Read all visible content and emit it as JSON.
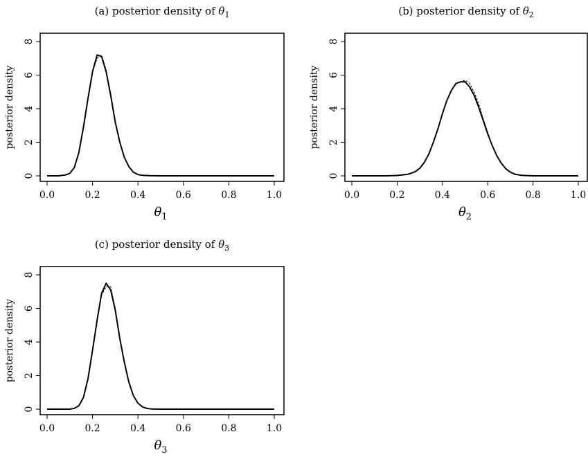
{
  "chart_data": [
    {
      "type": "line",
      "title_prefix": "(a) posterior density of ",
      "title_symbol": "θ",
      "title_subscript": "1",
      "xlabel_symbol": "θ",
      "xlabel_subscript": "1",
      "ylabel": "posterior density",
      "xlim": [
        0.0,
        1.0
      ],
      "ylim": [
        0,
        8
      ],
      "xticks": [
        "0.0",
        "0.2",
        "0.4",
        "0.6",
        "0.8",
        "1.0"
      ],
      "yticks": [
        "0",
        "2",
        "4",
        "6",
        "8"
      ],
      "series": [
        {
          "style": "solid",
          "x": [
            0.0,
            0.05,
            0.08,
            0.1,
            0.12,
            0.14,
            0.16,
            0.18,
            0.2,
            0.22,
            0.24,
            0.26,
            0.28,
            0.3,
            0.32,
            0.34,
            0.36,
            0.38,
            0.4,
            0.42,
            0.45,
            0.5,
            0.6,
            0.8,
            1.0
          ],
          "y": [
            0.0,
            0.0,
            0.05,
            0.15,
            0.5,
            1.4,
            2.9,
            4.6,
            6.2,
            7.2,
            7.1,
            6.2,
            4.8,
            3.2,
            2.0,
            1.1,
            0.55,
            0.22,
            0.08,
            0.03,
            0.01,
            0.0,
            0.0,
            0.0,
            0.0
          ]
        },
        {
          "style": "dashed",
          "x": [
            0.0,
            0.05,
            0.08,
            0.1,
            0.12,
            0.14,
            0.16,
            0.18,
            0.2,
            0.22,
            0.24,
            0.26,
            0.28,
            0.3,
            0.32,
            0.34,
            0.36,
            0.38,
            0.4,
            0.42,
            0.45,
            0.5,
            0.6,
            0.8,
            1.0
          ],
          "y": [
            0.0,
            0.0,
            0.05,
            0.15,
            0.5,
            1.4,
            2.9,
            4.6,
            6.2,
            7.0,
            7.2,
            6.3,
            4.9,
            3.3,
            2.0,
            1.1,
            0.55,
            0.22,
            0.08,
            0.03,
            0.01,
            0.0,
            0.0,
            0.0,
            0.0
          ]
        }
      ]
    },
    {
      "type": "line",
      "title_prefix": "(b) posterior density of ",
      "title_symbol": "θ",
      "title_subscript": "2",
      "xlabel_symbol": "θ",
      "xlabel_subscript": "2",
      "ylabel": "posterior density",
      "xlim": [
        0.0,
        1.0
      ],
      "ylim": [
        0,
        8
      ],
      "xticks": [
        "0.0",
        "0.2",
        "0.4",
        "0.6",
        "0.8",
        "1.0"
      ],
      "yticks": [
        "0",
        "2",
        "4",
        "6",
        "8"
      ],
      "series": [
        {
          "style": "solid",
          "x": [
            0.0,
            0.15,
            0.2,
            0.25,
            0.28,
            0.3,
            0.32,
            0.34,
            0.36,
            0.38,
            0.4,
            0.42,
            0.44,
            0.46,
            0.48,
            0.5,
            0.52,
            0.54,
            0.56,
            0.58,
            0.6,
            0.62,
            0.64,
            0.66,
            0.68,
            0.7,
            0.72,
            0.75,
            0.8,
            1.0
          ],
          "y": [
            0.0,
            0.0,
            0.02,
            0.1,
            0.25,
            0.45,
            0.8,
            1.3,
            2.0,
            2.8,
            3.7,
            4.5,
            5.1,
            5.5,
            5.6,
            5.6,
            5.3,
            4.8,
            4.1,
            3.3,
            2.5,
            1.8,
            1.2,
            0.75,
            0.42,
            0.22,
            0.1,
            0.03,
            0.0,
            0.0
          ]
        },
        {
          "style": "dashed",
          "x": [
            0.0,
            0.15,
            0.2,
            0.25,
            0.28,
            0.3,
            0.32,
            0.34,
            0.36,
            0.38,
            0.4,
            0.42,
            0.44,
            0.46,
            0.48,
            0.5,
            0.52,
            0.54,
            0.56,
            0.58,
            0.6,
            0.62,
            0.64,
            0.66,
            0.68,
            0.7,
            0.72,
            0.75,
            0.8,
            1.0
          ],
          "y": [
            0.0,
            0.0,
            0.02,
            0.1,
            0.25,
            0.45,
            0.8,
            1.3,
            2.0,
            2.8,
            3.7,
            4.5,
            5.1,
            5.5,
            5.6,
            5.7,
            5.5,
            5.0,
            4.3,
            3.4,
            2.6,
            1.8,
            1.2,
            0.75,
            0.42,
            0.22,
            0.1,
            0.03,
            0.0,
            0.0
          ]
        }
      ]
    },
    {
      "type": "line",
      "title_prefix": "(c) posterior density of ",
      "title_symbol": "θ",
      "title_subscript": "3",
      "xlabel_symbol": "θ",
      "xlabel_subscript": "3",
      "ylabel": "posterior density",
      "xlim": [
        0.0,
        1.0
      ],
      "ylim": [
        0,
        8
      ],
      "xticks": [
        "0.0",
        "0.2",
        "0.4",
        "0.6",
        "0.8",
        "1.0"
      ],
      "yticks": [
        "0",
        "2",
        "4",
        "6",
        "8"
      ],
      "series": [
        {
          "style": "solid",
          "x": [
            0.0,
            0.1,
            0.12,
            0.14,
            0.16,
            0.18,
            0.2,
            0.22,
            0.24,
            0.26,
            0.28,
            0.3,
            0.32,
            0.34,
            0.36,
            0.38,
            0.4,
            0.42,
            0.44,
            0.46,
            0.5,
            0.6,
            0.8,
            1.0
          ],
          "y": [
            0.0,
            0.0,
            0.05,
            0.2,
            0.7,
            1.8,
            3.5,
            5.3,
            6.9,
            7.5,
            7.1,
            5.9,
            4.2,
            2.8,
            1.6,
            0.8,
            0.35,
            0.13,
            0.04,
            0.01,
            0.0,
            0.0,
            0.0,
            0.0
          ]
        },
        {
          "style": "dashed",
          "x": [
            0.0,
            0.1,
            0.12,
            0.14,
            0.16,
            0.18,
            0.2,
            0.22,
            0.24,
            0.26,
            0.28,
            0.3,
            0.32,
            0.34,
            0.36,
            0.38,
            0.4,
            0.42,
            0.44,
            0.46,
            0.5,
            0.6,
            0.8,
            1.0
          ],
          "y": [
            0.0,
            0.0,
            0.05,
            0.2,
            0.7,
            1.8,
            3.5,
            5.2,
            6.8,
            7.3,
            7.3,
            6.0,
            4.3,
            2.8,
            1.6,
            0.8,
            0.35,
            0.13,
            0.04,
            0.01,
            0.0,
            0.0,
            0.0,
            0.0
          ]
        }
      ]
    }
  ]
}
